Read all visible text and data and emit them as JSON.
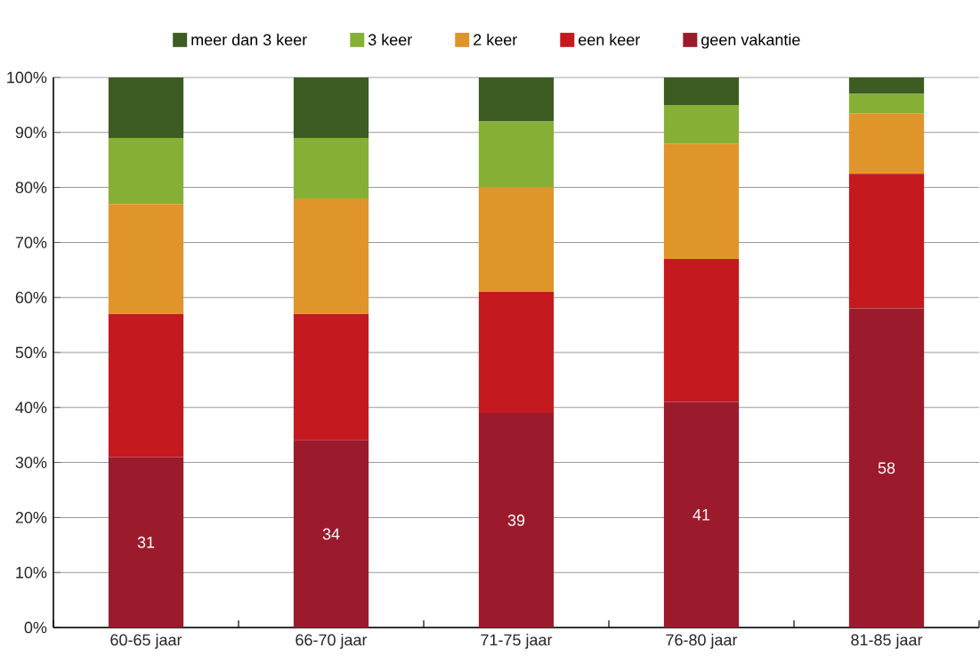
{
  "chart_data": {
    "type": "bar",
    "stacked": true,
    "categories": [
      "60-65 jaar",
      "66-70 jaar",
      "71-75 jaar",
      "76-80 jaar",
      "81-85 jaar"
    ],
    "series": [
      {
        "name": "geen vakantie",
        "color": "#9b1b2c",
        "values": [
          31,
          34,
          39,
          41,
          58
        ],
        "value_labels": [
          "31",
          "34",
          "39",
          "41",
          "58"
        ]
      },
      {
        "name": "een keer",
        "color": "#c4191f",
        "values": [
          26,
          23,
          22,
          26,
          24.5
        ]
      },
      {
        "name": "2 keer",
        "color": "#e0952a",
        "values": [
          20,
          21,
          19,
          21,
          11
        ]
      },
      {
        "name": "3 keer",
        "color": "#86b035",
        "values": [
          12,
          11,
          12,
          7,
          3.5
        ]
      },
      {
        "name": "meer dan 3 keer",
        "color": "#3d5c22",
        "values": [
          11,
          11,
          8,
          5,
          3
        ]
      }
    ],
    "ylim": [
      0,
      100
    ],
    "yticks": [
      {
        "value": 0,
        "label": "0%"
      },
      {
        "value": 10,
        "label": "10%"
      },
      {
        "value": 20,
        "label": "20%"
      },
      {
        "value": 30,
        "label": "30%"
      },
      {
        "value": 40,
        "label": "40%"
      },
      {
        "value": 50,
        "label": "50%"
      },
      {
        "value": 60,
        "label": "60%"
      },
      {
        "value": 70,
        "label": "70%"
      },
      {
        "value": 80,
        "label": "80%"
      },
      {
        "value": 90,
        "label": "90%"
      },
      {
        "value": 100,
        "label": "100%"
      }
    ],
    "grid": "y",
    "legend": "top"
  }
}
